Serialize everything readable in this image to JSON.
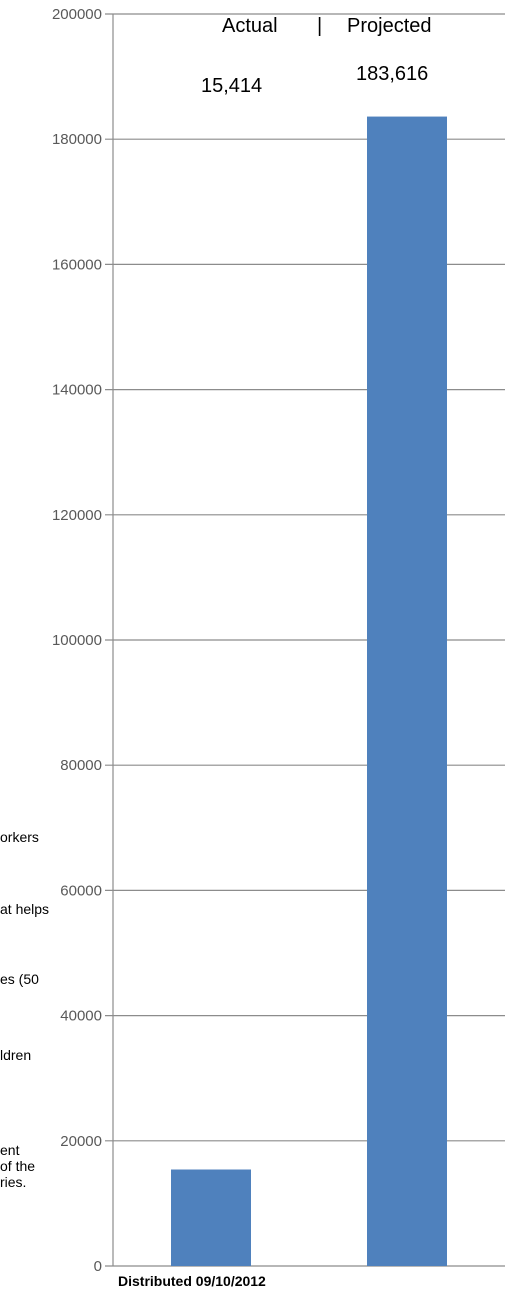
{
  "chart_data": {
    "type": "bar",
    "categories": [
      "Actual",
      "Projected"
    ],
    "values": [
      15414,
      183616
    ],
    "data_labels": [
      "15,414",
      "183,616"
    ],
    "ylim": [
      0,
      200000
    ],
    "yticks": [
      "0",
      "20000",
      "40000",
      "60000",
      "80000",
      "100000",
      "120000",
      "140000",
      "160000",
      "180000",
      "200000"
    ],
    "grid": true,
    "bar_color": "#4f81bd",
    "header": {
      "left": "Actual",
      "separator": "|",
      "right": "Projected"
    },
    "xlabel": "Distributed 09/10/2012"
  },
  "side_text": [
    "orkers",
    "at helps",
    "es (50",
    "ldren",
    "ent",
    "of the",
    "ries."
  ]
}
